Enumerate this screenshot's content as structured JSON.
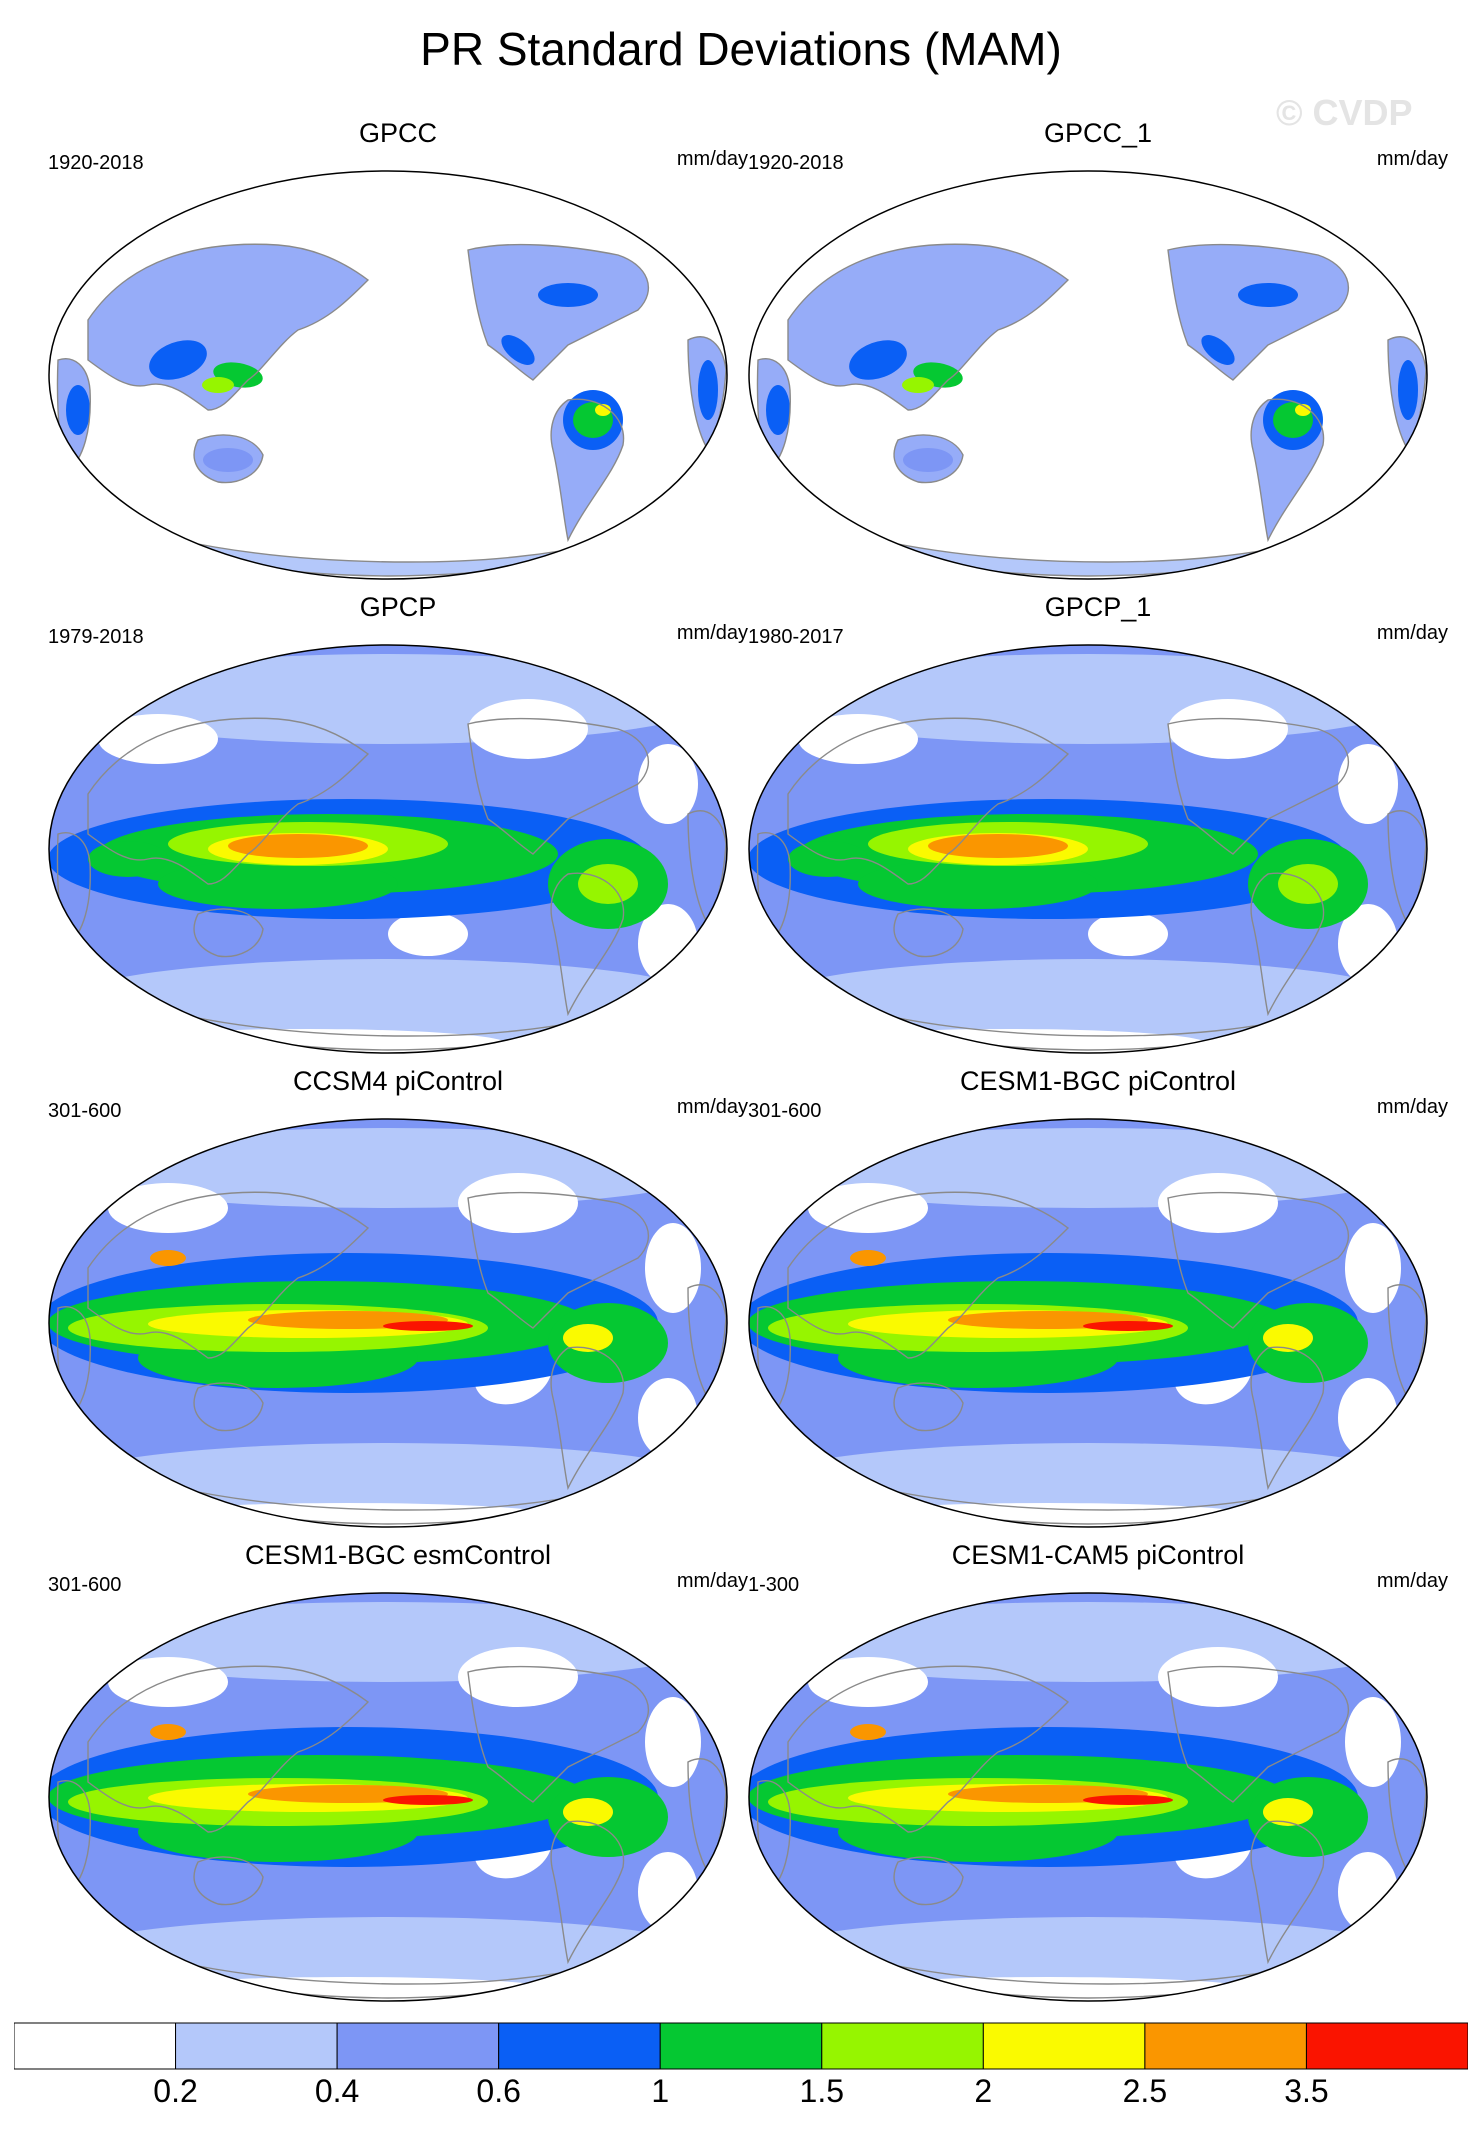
{
  "page": {
    "title": "PR Standard Deviations (MAM)",
    "watermark": "© CVDP"
  },
  "panels": [
    {
      "title": "GPCC",
      "period": "1920-2018",
      "units": "mm/day",
      "field": "gauge"
    },
    {
      "title": "GPCC_1",
      "period": "1920-2018",
      "units": "mm/day",
      "field": "gauge"
    },
    {
      "title": "GPCP",
      "period": "1979-2018",
      "units": "mm/day",
      "field": "obs"
    },
    {
      "title": "GPCP_1",
      "period": "1980-2017",
      "units": "mm/day",
      "field": "obs"
    },
    {
      "title": "CCSM4 piControl",
      "period": "301-600",
      "units": "mm/day",
      "field": "model"
    },
    {
      "title": "CESM1-BGC piControl",
      "period": "301-600",
      "units": "mm/day",
      "field": "model"
    },
    {
      "title": "CESM1-BGC esmControl",
      "period": "301-600",
      "units": "mm/day",
      "field": "model"
    },
    {
      "title": "CESM1-CAM5 piControl",
      "period": "1-300",
      "units": "mm/day",
      "field": "model"
    }
  ],
  "colorbar": {
    "colors": [
      "#ffffff",
      "#b4c8fa",
      "#7d96f5",
      "#0a5ff5",
      "#05c832",
      "#96f500",
      "#fafa00",
      "#fa9600",
      "#fa1400"
    ],
    "labels": [
      "0.2",
      "0.4",
      "0.6",
      "1",
      "1.5",
      "2",
      "2.5",
      "3.5"
    ]
  }
}
